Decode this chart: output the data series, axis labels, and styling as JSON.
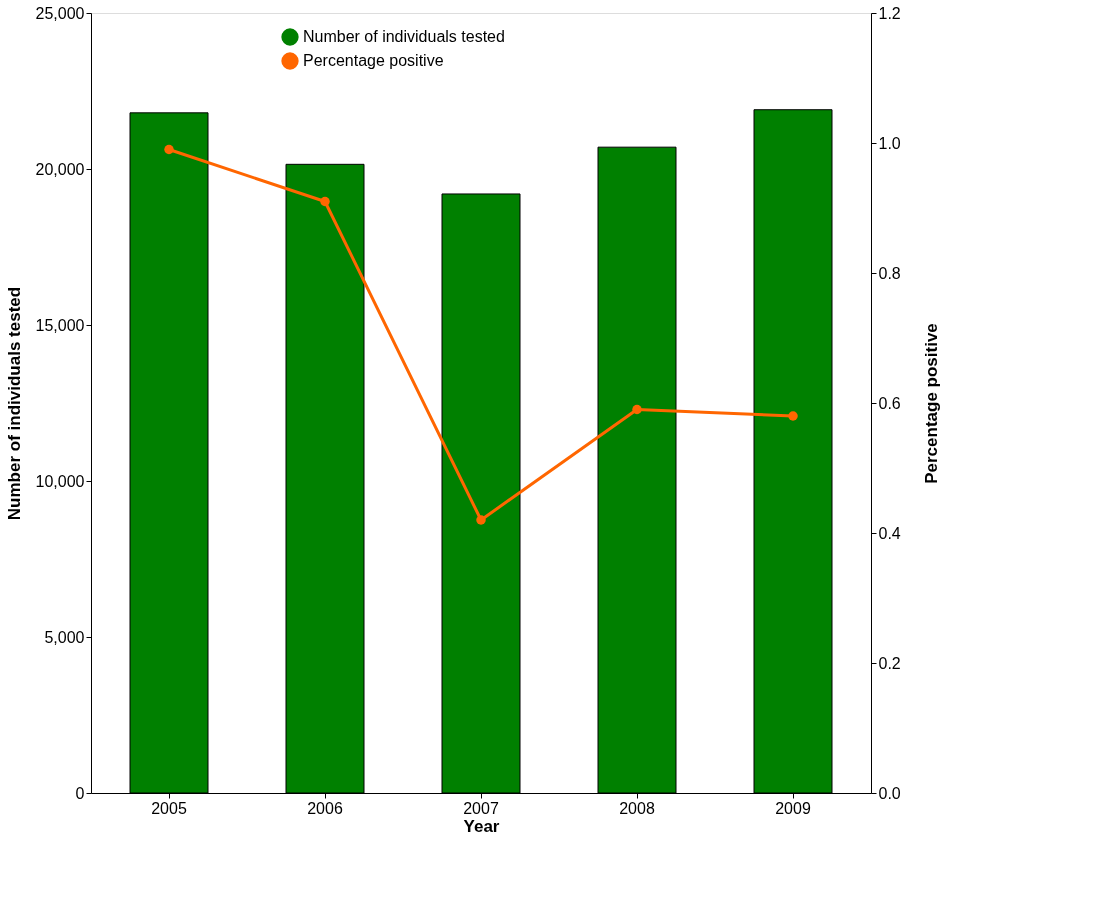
{
  "chart_data": {
    "type": "bar",
    "xlabel": "Year",
    "ylabel": "Number of individuals tested",
    "y2label": "Percentage positive",
    "categories": [
      "2005",
      "2006",
      "2007",
      "2008",
      "2009"
    ],
    "series": [
      {
        "name": "Number of individuals tested",
        "color": "#008000",
        "values": [
          21800,
          20150,
          19200,
          20700,
          21900
        ]
      },
      {
        "name": "Percentage positive",
        "type": "line",
        "axis": "y2",
        "color": "#ff6600",
        "marker": "circle",
        "values": [
          0.99,
          0.91,
          0.42,
          0.59,
          0.58
        ]
      }
    ],
    "ylim": [
      0,
      25000
    ],
    "yticks": [
      0,
      {
        "value": 5000,
        "label": "5,000"
      },
      {
        "value": 10000,
        "label": "10,000"
      },
      {
        "value": 15000,
        "label": "15,000"
      },
      {
        "value": 20000,
        "label": "20,000"
      },
      {
        "value": 25000,
        "label": "25,000"
      }
    ],
    "y2lim": [
      0,
      1.2
    ],
    "y2ticks": [
      {
        "value": 0,
        "label": "0.0"
      },
      0.2,
      0.4,
      0.6,
      0.8,
      {
        "value": 1,
        "label": "1.0"
      },
      1.2
    ],
    "grid": false,
    "legend": "top"
  }
}
